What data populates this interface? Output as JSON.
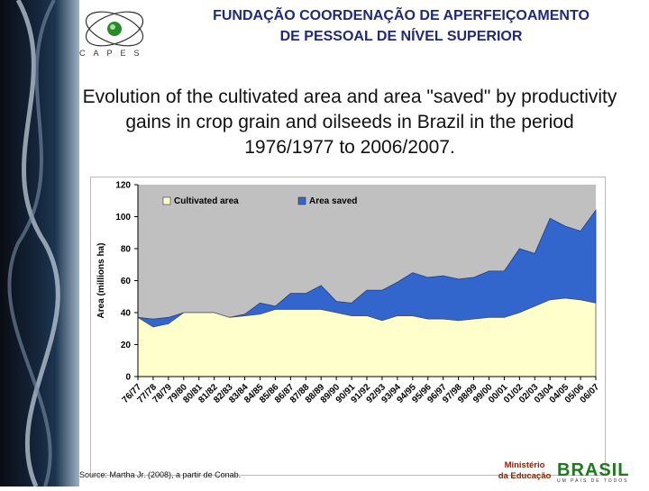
{
  "header": {
    "line1": "FUNDAÇÃO COORDENAÇÃO DE APERFEIÇOAMENTO",
    "line2": "DE PESSOAL DE NÍVEL SUPERIOR",
    "logo_text": "CAPES"
  },
  "title": "Evolution of the cultivated area and area \"saved\" by productivity gains in crop grain and oilseeds in Brazil in the period 1976/1977 to 2006/2007.",
  "source": "Source: Martha Jr. (2008), a partir de Conab.",
  "ministry": {
    "line1": "Ministério",
    "line2": "da Educação",
    "brasil": "BRASIL",
    "slogan": "UM PAÍS DE TODOS"
  },
  "colors": {
    "cultivated": "#ffffcc",
    "saved": "#3366cc",
    "plot_bg": "#c0c0c0",
    "header": "#1f2a78"
  },
  "chart_data": {
    "type": "area",
    "ylabel": "Area (millions ha)",
    "xlabel": "",
    "ylim": [
      0,
      120
    ],
    "yticks": [
      0,
      20,
      40,
      60,
      80,
      100,
      120
    ],
    "grid": false,
    "legend": "top-left",
    "categories": [
      "76/77",
      "77/78",
      "78/79",
      "79/80",
      "80/81",
      "81/82",
      "82/83",
      "83/84",
      "84/85",
      "85/86",
      "86/87",
      "87/88",
      "88/89",
      "89/90",
      "90/91",
      "91/92",
      "92/93",
      "93/94",
      "94/95",
      "95/96",
      "96/97",
      "97/98",
      "98/99",
      "99/00",
      "00/01",
      "01/02",
      "02/03",
      "03/04",
      "04/05",
      "05/06",
      "06/07"
    ],
    "series": [
      {
        "name": "Cultivated area",
        "values": [
          37,
          31,
          33,
          40,
          40,
          40,
          37,
          38,
          39,
          42,
          42,
          42,
          42,
          40,
          38,
          38,
          35,
          38,
          38,
          36,
          36,
          35,
          36,
          37,
          37,
          40,
          44,
          48,
          49,
          48,
          46
        ]
      },
      {
        "name": "Area saved",
        "values": [
          0,
          5,
          4,
          0,
          0,
          0,
          0,
          1,
          7,
          2,
          10,
          10,
          15,
          7,
          8,
          16,
          19,
          21,
          27,
          26,
          27,
          26,
          26,
          29,
          29,
          40,
          33,
          51,
          45,
          43,
          58
        ]
      }
    ]
  }
}
